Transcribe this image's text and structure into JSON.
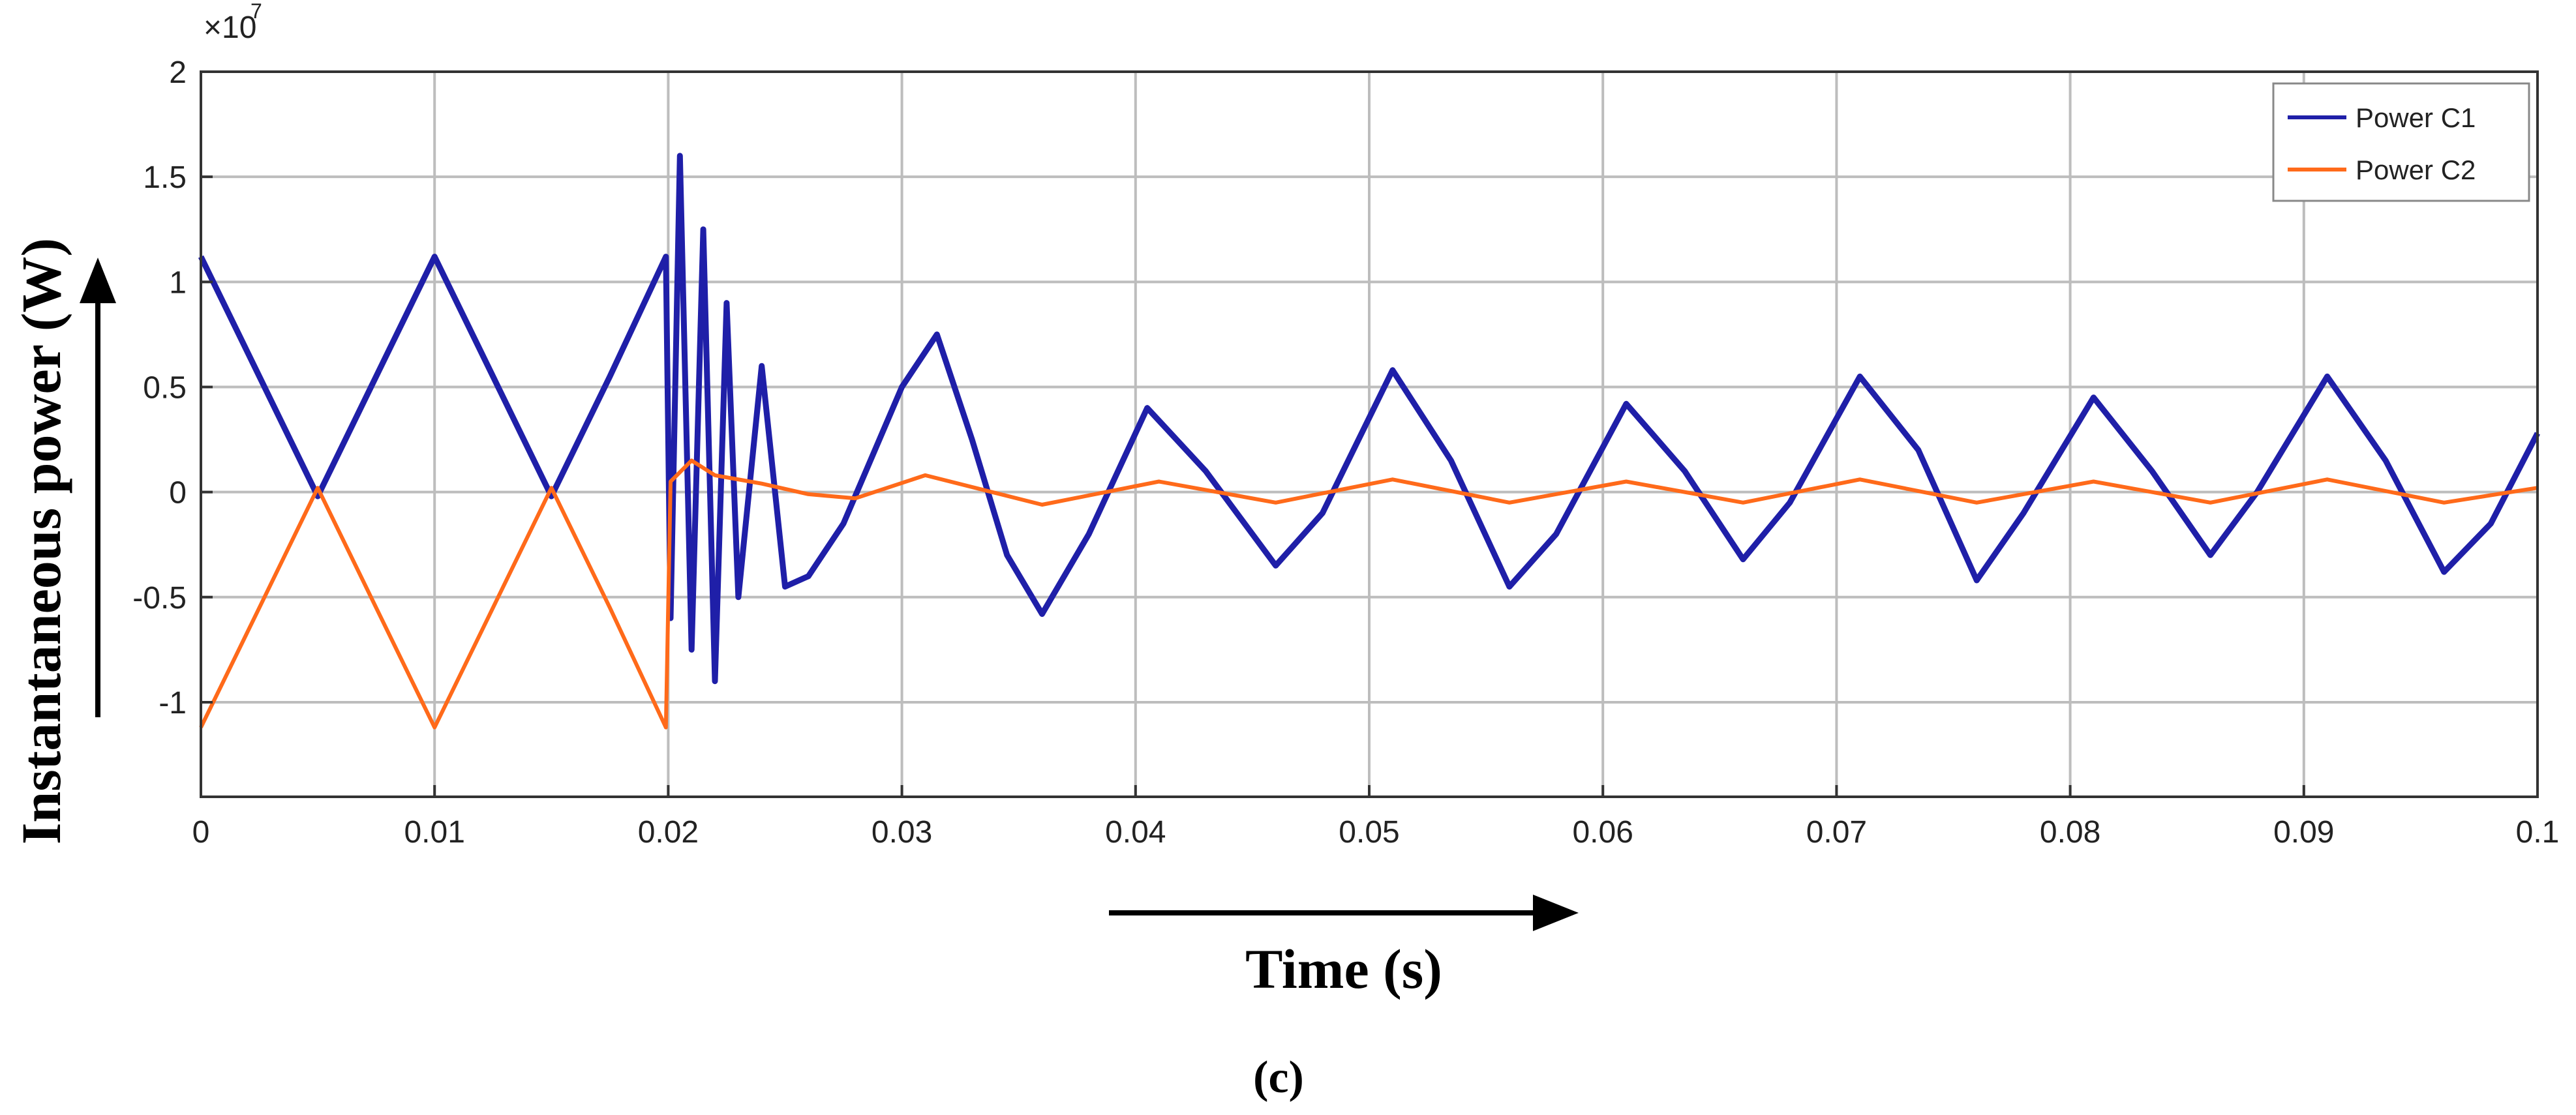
{
  "chart_data": {
    "type": "line",
    "title": "",
    "xlabel": "Time (s)",
    "ylabel": "Instantaneous power (W)",
    "caption": "(c)",
    "y_exponent": {
      "base": "×10",
      "power": "7"
    },
    "xlim": [
      0,
      0.1
    ],
    "ylim": [
      -1.45,
      2
    ],
    "x_ticks": [
      0,
      0.01,
      0.02,
      0.03,
      0.04,
      0.05,
      0.06,
      0.07,
      0.08,
      0.09,
      0.1
    ],
    "x_tick_labels": [
      "0",
      "0.01",
      "0.02",
      "0.03",
      "0.04",
      "0.05",
      "0.06",
      "0.07",
      "0.08",
      "0.09",
      "0.1"
    ],
    "y_ticks": [
      -1,
      -0.5,
      0,
      0.5,
      1,
      1.5,
      2
    ],
    "y_tick_labels": [
      "-1",
      "-0.5",
      "0",
      "0.5",
      "1",
      "1.5",
      "2"
    ],
    "grid": true,
    "legend_position": "top-right",
    "series": [
      {
        "name": "Power C1",
        "color": "#1f1fa8",
        "x": [
          0,
          0.0025,
          0.005,
          0.0075,
          0.01,
          0.0125,
          0.015,
          0.0175,
          0.0199,
          0.0201,
          0.0205,
          0.021,
          0.0215,
          0.022,
          0.0225,
          0.023,
          0.024,
          0.025,
          0.026,
          0.0275,
          0.03,
          0.0315,
          0.033,
          0.0345,
          0.036,
          0.038,
          0.0405,
          0.043,
          0.046,
          0.048,
          0.051,
          0.0535,
          0.056,
          0.058,
          0.061,
          0.0635,
          0.066,
          0.068,
          0.071,
          0.0735,
          0.076,
          0.078,
          0.081,
          0.0835,
          0.086,
          0.088,
          0.091,
          0.0935,
          0.096,
          0.098,
          0.1
        ],
        "y": [
          1.12,
          0.55,
          -0.02,
          0.55,
          1.12,
          0.55,
          -0.02,
          0.55,
          1.12,
          -0.6,
          1.6,
          -0.75,
          1.25,
          -0.9,
          0.9,
          -0.5,
          0.6,
          -0.45,
          -0.4,
          -0.15,
          0.5,
          0.75,
          0.25,
          -0.3,
          -0.58,
          -0.2,
          0.4,
          0.1,
          -0.35,
          -0.1,
          0.58,
          0.15,
          -0.45,
          -0.2,
          0.42,
          0.1,
          -0.32,
          -0.05,
          0.55,
          0.2,
          -0.42,
          -0.1,
          0.45,
          0.1,
          -0.3,
          0.0,
          0.55,
          0.15,
          -0.38,
          -0.15,
          0.28
        ]
      },
      {
        "name": "Power C2",
        "color": "#ff6a1a",
        "x": [
          0,
          0.0025,
          0.005,
          0.0075,
          0.01,
          0.0125,
          0.015,
          0.0175,
          0.0199,
          0.0201,
          0.021,
          0.022,
          0.024,
          0.026,
          0.028,
          0.031,
          0.036,
          0.041,
          0.046,
          0.051,
          0.056,
          0.061,
          0.066,
          0.071,
          0.076,
          0.081,
          0.086,
          0.091,
          0.096,
          0.1
        ],
        "y": [
          -1.12,
          -0.55,
          0.02,
          -0.55,
          -1.12,
          -0.55,
          0.02,
          -0.55,
          -1.12,
          0.05,
          0.15,
          0.08,
          0.04,
          -0.01,
          -0.03,
          0.08,
          -0.06,
          0.05,
          -0.05,
          0.06,
          -0.05,
          0.05,
          -0.05,
          0.06,
          -0.05,
          0.05,
          -0.05,
          0.06,
          -0.05,
          0.02
        ]
      }
    ]
  }
}
